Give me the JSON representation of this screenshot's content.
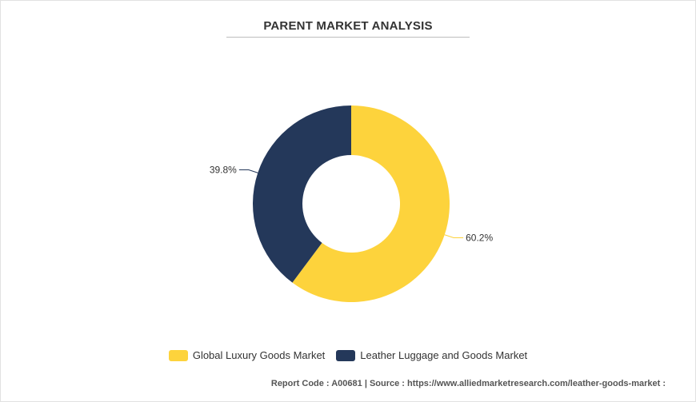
{
  "title": "PARENT MARKET ANALYSIS",
  "footer": "Report Code : A00681  |  Source : https://www.alliedmarketresearch.com/leather-goods-market :",
  "colors": {
    "luxury": "#fdd33c",
    "leather": "#24385a"
  },
  "chart_data": {
    "type": "pie",
    "variant": "donut",
    "title": "PARENT MARKET ANALYSIS",
    "series": [
      {
        "name": "Global Luxury Goods Market",
        "value": 60.2,
        "label": "60.2%"
      },
      {
        "name": "Leather Luggage and Goods Market",
        "value": 39.8,
        "label": "39.8%"
      }
    ],
    "legend_position": "bottom"
  }
}
